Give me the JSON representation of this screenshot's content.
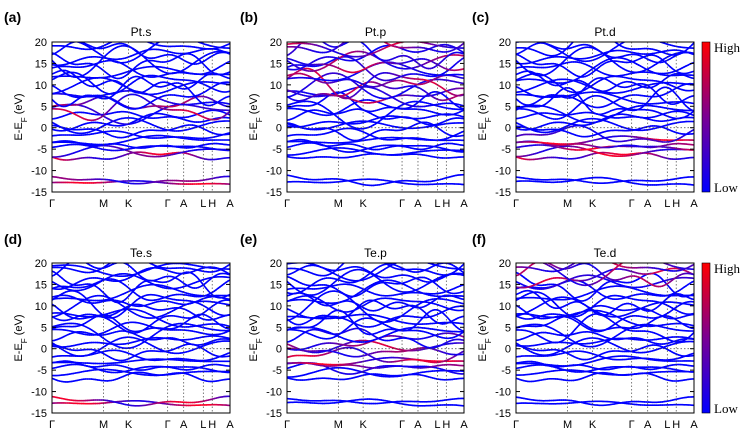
{
  "figure_labels": [
    "(a)",
    "(b)",
    "(c)",
    "(d)",
    "(e)",
    "(f)"
  ],
  "colorbar": {
    "high_label": "High",
    "low_label": "Low",
    "low_color": "#0000ff",
    "high_color": "#ff0000"
  },
  "chart_data": [
    {
      "type": "line",
      "panel": "(a)",
      "title": "Pt.s",
      "ylabel_main": "E-E",
      "ylabel_sub": "F",
      "ylabel_unit": " (eV)",
      "ylim": [
        -15,
        20
      ],
      "yticks": [
        "20",
        "15",
        "10",
        "5",
        "0",
        "-5",
        "-10",
        "-15"
      ],
      "kpath": [
        "Γ",
        "M",
        "K",
        "Γ",
        "A",
        "L",
        "H",
        "A"
      ],
      "kpos": [
        0,
        0.29,
        0.43,
        0.65,
        0.74,
        0.85,
        0.9,
        1
      ],
      "projection": "Pt s",
      "highlight_energies": [
        5,
        -6.5,
        -13
      ]
    },
    {
      "type": "line",
      "panel": "(b)",
      "title": "Pt.p",
      "ylabel_main": "E-E",
      "ylabel_sub": "F",
      "ylabel_unit": " (eV)",
      "ylim": [
        -15,
        20
      ],
      "yticks": [
        "20",
        "15",
        "10",
        "5",
        "0",
        "-5",
        "-10",
        "-15"
      ],
      "kpath": [
        "Γ",
        "M",
        "K",
        "Γ",
        "A",
        "L",
        "H",
        "A"
      ],
      "kpos": [
        0,
        0.29,
        0.43,
        0.65,
        0.74,
        0.85,
        0.9,
        1
      ],
      "projection": "Pt p",
      "highlight_energies": [
        8,
        11,
        15,
        19
      ]
    },
    {
      "type": "line",
      "panel": "(c)",
      "title": "Pt.d",
      "ylabel_main": "E-E",
      "ylabel_sub": "F",
      "ylabel_unit": " (eV)",
      "ylim": [
        -15,
        20
      ],
      "yticks": [
        "20",
        "15",
        "10",
        "5",
        "0",
        "-5",
        "-10",
        "-15"
      ],
      "kpath": [
        "Γ",
        "M",
        "K",
        "Γ",
        "A",
        "L",
        "H",
        "A"
      ],
      "kpos": [
        0,
        0.29,
        0.43,
        0.65,
        0.74,
        0.85,
        0.9,
        1
      ],
      "projection": "Pt d",
      "highlight_energies": [
        -3,
        -4.5,
        -5.5,
        -6.5
      ]
    },
    {
      "type": "line",
      "panel": "(d)",
      "title": "Te.s",
      "ylabel_main": "E-E",
      "ylabel_sub": "F",
      "ylabel_unit": " (eV)",
      "ylim": [
        -15,
        20
      ],
      "yticks": [
        "20",
        "15",
        "10",
        "5",
        "0",
        "-5",
        "-10",
        "-15"
      ],
      "kpath": [
        "Γ",
        "M",
        "K",
        "Γ",
        "A",
        "L",
        "H",
        "A"
      ],
      "kpos": [
        0,
        0.29,
        0.43,
        0.65,
        0.74,
        0.85,
        0.9,
        1
      ],
      "projection": "Te s",
      "highlight_energies": [
        -12,
        -13
      ]
    },
    {
      "type": "line",
      "panel": "(e)",
      "title": "Te.p",
      "ylabel_main": "E-E",
      "ylabel_sub": "F",
      "ylabel_unit": " (eV)",
      "ylim": [
        -15,
        20
      ],
      "yticks": [
        "20",
        "15",
        "10",
        "5",
        "0",
        "-5",
        "-10",
        "-15"
      ],
      "kpath": [
        "Γ",
        "M",
        "K",
        "Γ",
        "A",
        "L",
        "H",
        "A"
      ],
      "kpos": [
        0,
        0.29,
        0.43,
        0.65,
        0.74,
        0.85,
        0.9,
        1
      ],
      "projection": "Te p",
      "highlight_energies": [
        1,
        0,
        -1.5,
        -3
      ]
    },
    {
      "type": "line",
      "panel": "(f)",
      "title": "Te.d",
      "ylabel_main": "E-E",
      "ylabel_sub": "F",
      "ylabel_unit": " (eV)",
      "ylim": [
        -15,
        20
      ],
      "yticks": [
        "20",
        "15",
        "10",
        "5",
        "0",
        "-5",
        "-10",
        "-15"
      ],
      "kpath": [
        "Γ",
        "M",
        "K",
        "Γ",
        "A",
        "L",
        "H",
        "A"
      ],
      "kpos": [
        0,
        0.29,
        0.43,
        0.65,
        0.74,
        0.85,
        0.9,
        1
      ],
      "projection": "Te d",
      "highlight_energies": [
        17,
        19,
        20
      ]
    }
  ]
}
